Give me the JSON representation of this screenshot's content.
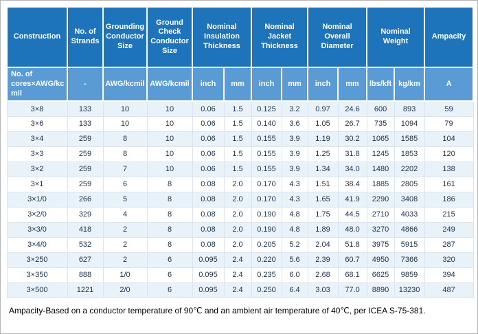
{
  "colors": {
    "header_bg": "#1e74bb",
    "subheader_bg": "#5b9bd5",
    "row_alt_bg": "#e9f1f9"
  },
  "table": {
    "groups": [
      {
        "label": "Construction",
        "span": 1
      },
      {
        "label": "No. of Strands",
        "span": 1
      },
      {
        "label": "Grounding Conductor Size",
        "span": 1
      },
      {
        "label": "Ground Check Conductor Size",
        "span": 1
      },
      {
        "label": "Nominal Insulation Thickness",
        "span": 2
      },
      {
        "label": "Nominal Jacket Thickness",
        "span": 2
      },
      {
        "label": "Nominal Overall Diameter",
        "span": 2
      },
      {
        "label": "Nominal Weight",
        "span": 2
      },
      {
        "label": "Ampacity",
        "span": 1
      }
    ],
    "subheaders": [
      "No. of cores×AWG/kcmil",
      "-",
      "AWG/kcmil",
      "AWG/kcmil",
      "inch",
      "mm",
      "inch",
      "mm",
      "inch",
      "mm",
      "lbs/kft",
      "kg/km",
      "A"
    ],
    "rows": [
      [
        "3×8",
        "133",
        "10",
        "10",
        "0.06",
        "1.5",
        "0.125",
        "3.2",
        "0.97",
        "24.6",
        "600",
        "893",
        "59"
      ],
      [
        "3×6",
        "133",
        "10",
        "10",
        "0.06",
        "1.5",
        "0.140",
        "3.6",
        "1.05",
        "26.7",
        "735",
        "1094",
        "79"
      ],
      [
        "3×4",
        "259",
        "8",
        "10",
        "0.06",
        "1.5",
        "0.155",
        "3.9",
        "1.19",
        "30.2",
        "1065",
        "1585",
        "104"
      ],
      [
        "3×3",
        "259",
        "8",
        "10",
        "0.06",
        "1.5",
        "0.155",
        "3.9",
        "1.25",
        "31.8",
        "1245",
        "1853",
        "120"
      ],
      [
        "3×2",
        "259",
        "7",
        "10",
        "0.06",
        "1.5",
        "0.155",
        "3.9",
        "1.34",
        "34.0",
        "1480",
        "2202",
        "138"
      ],
      [
        "3×1",
        "259",
        "6",
        "8",
        "0.08",
        "2.0",
        "0.170",
        "4.3",
        "1.51",
        "38.4",
        "1885",
        "2805",
        "161"
      ],
      [
        "3×1/0",
        "266",
        "5",
        "8",
        "0.08",
        "2.0",
        "0.170",
        "4.3",
        "1.65",
        "41.9",
        "2290",
        "3408",
        "186"
      ],
      [
        "3×2/0",
        "329",
        "4",
        "8",
        "0.08",
        "2.0",
        "0.190",
        "4.8",
        "1.75",
        "44.5",
        "2710",
        "4033",
        "215"
      ],
      [
        "3×3/0",
        "418",
        "2",
        "8",
        "0.08",
        "2.0",
        "0.190",
        "4.8",
        "1.89",
        "48.0",
        "3270",
        "4866",
        "249"
      ],
      [
        "3×4/0",
        "532",
        "2",
        "8",
        "0.08",
        "2.0",
        "0.205",
        "5.2",
        "2.04",
        "51.8",
        "3975",
        "5915",
        "287"
      ],
      [
        "3×250",
        "627",
        "2",
        "6",
        "0.095",
        "2.4",
        "0.220",
        "5.6",
        "2.39",
        "60.7",
        "4950",
        "7366",
        "320"
      ],
      [
        "3×350",
        "888",
        "1/0",
        "6",
        "0.095",
        "2.4",
        "0.235",
        "6.0",
        "2.68",
        "68.1",
        "6625",
        "9859",
        "394"
      ],
      [
        "3×500",
        "1221",
        "2/0",
        "6",
        "0.095",
        "2.4",
        "0.250",
        "6.4",
        "3.03",
        "77.0",
        "8890",
        "13230",
        "487"
      ]
    ]
  },
  "footnote": "Ampacity-Based on a conductor temperature of 90℃ and an ambient air temperature of 40℃, per ICEA S-75-381."
}
